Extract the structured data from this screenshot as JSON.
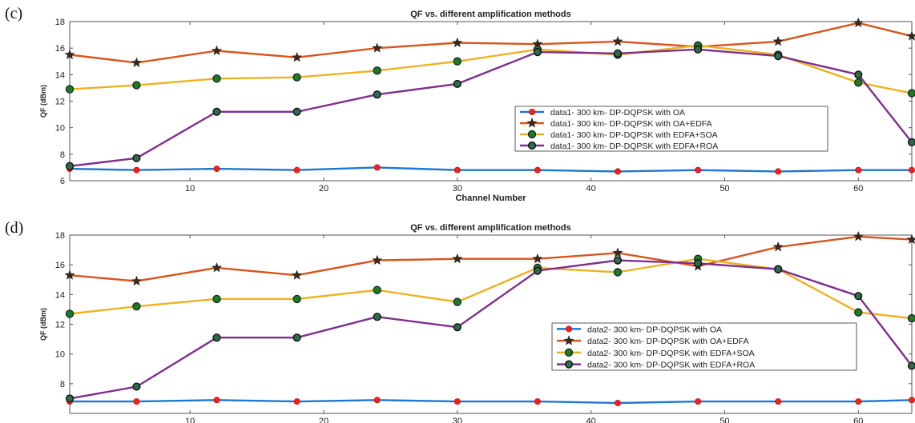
{
  "chart_data": [
    {
      "panel": "(c)",
      "type": "line",
      "title": "QF vs. different amplification methods",
      "xlabel": "Channel Number",
      "ylabel": "QF (dBm)",
      "xlim": [
        1,
        64
      ],
      "ylim": [
        6,
        18
      ],
      "xticks": [
        10,
        20,
        30,
        40,
        50,
        60
      ],
      "yticks": [
        6,
        8,
        10,
        12,
        14,
        16,
        18
      ],
      "grid": false,
      "legend_position": "center-right",
      "x": [
        1,
        6,
        12,
        18,
        24,
        30,
        36,
        42,
        48,
        54,
        60,
        64
      ],
      "series": [
        {
          "name": "data1- 300 km- DP-DQPSK with OA",
          "color": "#1f77d0",
          "marker": "dot-red",
          "values": [
            6.9,
            6.8,
            6.9,
            6.8,
            7.0,
            6.8,
            6.8,
            6.7,
            6.8,
            6.7,
            6.8,
            6.8
          ]
        },
        {
          "name": "data1- 300 km- DP-DQPSK with OA+EDFA",
          "color": "#d9541c",
          "marker": "star",
          "values": [
            15.5,
            14.9,
            15.8,
            15.3,
            16.0,
            16.4,
            16.3,
            16.5,
            16.1,
            16.5,
            17.9,
            16.9
          ]
        },
        {
          "name": "data1- 300 km- DP-DQPSK with EDFA+SOA",
          "color": "#eeb120",
          "marker": "circle-green",
          "values": [
            12.9,
            13.2,
            13.7,
            13.8,
            14.3,
            15.0,
            15.9,
            15.5,
            16.2,
            15.5,
            13.4,
            12.6
          ]
        },
        {
          "name": "data1- 300 km- DP-DQPSK with EDFA+ROA",
          "color": "#7e2f8e",
          "marker": "circle",
          "values": [
            7.1,
            7.7,
            11.2,
            11.2,
            12.5,
            13.3,
            15.7,
            15.6,
            15.9,
            15.4,
            14.0,
            8.9
          ]
        }
      ]
    },
    {
      "panel": "(d)",
      "type": "line",
      "title": "QF vs. different amplification methods",
      "xlabel": "Channel Number",
      "ylabel": "QF (dBm)",
      "xlim": [
        1,
        64
      ],
      "ylim": [
        6,
        18
      ],
      "xticks": [
        10,
        20,
        30,
        40,
        50,
        60
      ],
      "yticks": [
        8,
        10,
        12,
        14,
        16,
        18
      ],
      "grid": false,
      "legend_position": "center-right",
      "x": [
        1,
        6,
        12,
        18,
        24,
        30,
        36,
        42,
        48,
        54,
        60,
        64
      ],
      "series": [
        {
          "name": "data2- 300 km- DP-DQPSK with OA",
          "color": "#1f77d0",
          "marker": "dot-red",
          "values": [
            6.8,
            6.8,
            6.9,
            6.8,
            6.9,
            6.8,
            6.8,
            6.7,
            6.8,
            6.8,
            6.8,
            6.9
          ]
        },
        {
          "name": "data2- 300 km- DP-DQPSK with OA+EDFA",
          "color": "#d9541c",
          "marker": "star",
          "values": [
            15.3,
            14.9,
            15.8,
            15.3,
            16.3,
            16.4,
            16.4,
            16.8,
            15.9,
            17.2,
            17.9,
            17.7
          ]
        },
        {
          "name": "data2- 300 km- DP-DQPSK with EDFA+SOA",
          "color": "#eeb120",
          "marker": "circle-green",
          "values": [
            12.7,
            13.2,
            13.7,
            13.7,
            14.3,
            13.5,
            15.8,
            15.5,
            16.4,
            15.7,
            12.8,
            12.4
          ]
        },
        {
          "name": "data2- 300 km- DP-DQPSK with EDFA+ROA",
          "color": "#7e2f8e",
          "marker": "circle",
          "values": [
            7.0,
            7.8,
            11.1,
            11.1,
            12.5,
            11.8,
            15.6,
            16.3,
            16.1,
            15.7,
            13.9,
            9.2
          ]
        }
      ]
    }
  ]
}
